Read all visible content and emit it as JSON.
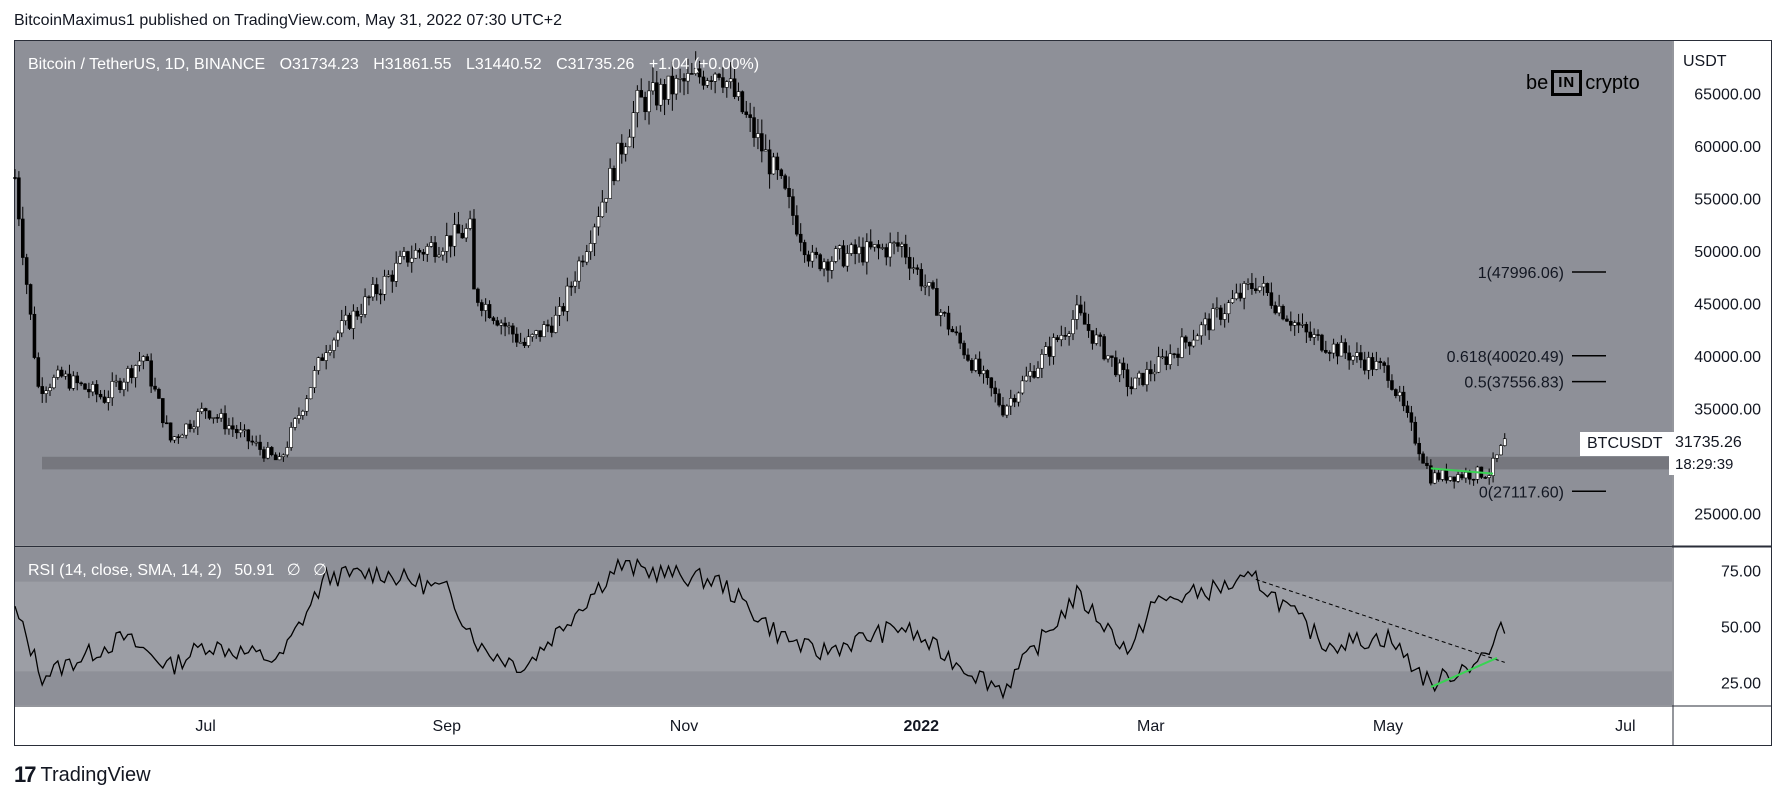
{
  "publish_line": "BitcoinMaximus1 published on TradingView.com, May 31, 2022 07:30 UTC+2",
  "symbol_title": "Bitcoin / TetherUS, 1D, BINANCE",
  "ohlc": {
    "o_label": "O",
    "o": "31734.23",
    "h_label": "H",
    "h": "31861.55",
    "l_label": "L",
    "l": "31440.52",
    "c_label": "C",
    "c": "31735.26",
    "change": "+1.04 (+0.00%)"
  },
  "brand": {
    "left": "be",
    "box": "IN",
    "right": "crypto"
  },
  "currency": "USDT",
  "last_price_tag": {
    "symbol": "BTCUSDT",
    "price": "31735.26",
    "countdown": "18:29:39"
  },
  "rsi_legend": {
    "label": "RSI (14, close, SMA, 14, 2)",
    "value": "50.91",
    "na1": "∅",
    "na2": "∅"
  },
  "footer": {
    "logo": "17",
    "text": "TradingView"
  },
  "colors": {
    "plot_bg": "#8e9098",
    "rsi_band": "#9c9ea5",
    "support_band": "#6d6f76",
    "green": "#39d353",
    "text_white": "#ffffff"
  },
  "chart_data": [
    {
      "type": "candlestick",
      "price_axis": {
        "ticks": [
          "65000.00",
          "60000.00",
          "55000.00",
          "50000.00",
          "45000.00",
          "40000.00",
          "35000.00",
          "25000.00"
        ],
        "range": [
          22000,
          70000
        ]
      },
      "time_axis": {
        "labels": [
          "Jul",
          "Sep",
          "Nov",
          "2022",
          "Mar",
          "May",
          "Jul"
        ],
        "dates": [
          "2021-07-01",
          "2021-09-01",
          "2021-11-01",
          "2022-01-01",
          "2022-03-01",
          "2022-05-01",
          "2022-07-01"
        ]
      },
      "range": [
        "2021-05-13",
        "2022-07-13"
      ],
      "close_path": [
        {
          "date": "2021-05-13",
          "price": 57000
        },
        {
          "date": "2021-05-19",
          "price": 37000
        },
        {
          "date": "2021-05-25",
          "price": 38000
        },
        {
          "date": "2021-06-05",
          "price": 36000
        },
        {
          "date": "2021-06-15",
          "price": 40000
        },
        {
          "date": "2021-06-22",
          "price": 32000
        },
        {
          "date": "2021-07-01",
          "price": 35000
        },
        {
          "date": "2021-07-20",
          "price": 29800
        },
        {
          "date": "2021-08-01",
          "price": 41000
        },
        {
          "date": "2021-08-22",
          "price": 49500
        },
        {
          "date": "2021-09-07",
          "price": 52000
        },
        {
          "date": "2021-09-08",
          "price": 46000
        },
        {
          "date": "2021-09-21",
          "price": 41000
        },
        {
          "date": "2021-09-30",
          "price": 43800
        },
        {
          "date": "2021-10-20",
          "price": 64000
        },
        {
          "date": "2021-11-10",
          "price": 67500
        },
        {
          "date": "2021-11-25",
          "price": 57000
        },
        {
          "date": "2021-12-04",
          "price": 49000
        },
        {
          "date": "2021-12-27",
          "price": 50500
        },
        {
          "date": "2022-01-10",
          "price": 41700
        },
        {
          "date": "2022-01-22",
          "price": 35000
        },
        {
          "date": "2022-02-10",
          "price": 44000
        },
        {
          "date": "2022-02-24",
          "price": 37000
        },
        {
          "date": "2022-03-28",
          "price": 47000
        },
        {
          "date": "2022-04-10",
          "price": 42000
        },
        {
          "date": "2022-05-01",
          "price": 38500
        },
        {
          "date": "2022-05-12",
          "price": 28500
        },
        {
          "date": "2022-05-27",
          "price": 28900
        },
        {
          "date": "2022-05-31",
          "price": 31735
        }
      ],
      "support_zone": [
        29200,
        30400
      ],
      "fibonacci": [
        {
          "label": "1(47996.06)",
          "price": 47996.06
        },
        {
          "label": "0.618(40020.49)",
          "price": 40020.49
        },
        {
          "label": "0.5(37556.83)",
          "price": 37556.83
        },
        {
          "label": "0(27117.60)",
          "price": 27117.6
        }
      ],
      "green_trendline": [
        {
          "date": "2022-05-12",
          "price": 29300
        },
        {
          "date": "2022-05-28",
          "price": 28800
        }
      ]
    },
    {
      "type": "line",
      "name": "RSI",
      "axis_ticks": [
        "75.00",
        "50.00",
        "25.00"
      ],
      "band": [
        30,
        70
      ],
      "range": [
        15,
        85
      ],
      "points": [
        {
          "date": "2021-05-13",
          "value": 57
        },
        {
          "date": "2021-05-20",
          "value": 28
        },
        {
          "date": "2021-06-10",
          "value": 45
        },
        {
          "date": "2021-06-22",
          "value": 32
        },
        {
          "date": "2021-07-01",
          "value": 42
        },
        {
          "date": "2021-07-20",
          "value": 35
        },
        {
          "date": "2021-08-01",
          "value": 72
        },
        {
          "date": "2021-08-15",
          "value": 74
        },
        {
          "date": "2021-09-01",
          "value": 66
        },
        {
          "date": "2021-09-10",
          "value": 40
        },
        {
          "date": "2021-09-21",
          "value": 32
        },
        {
          "date": "2021-10-15",
          "value": 77
        },
        {
          "date": "2021-11-10",
          "value": 70
        },
        {
          "date": "2021-11-25",
          "value": 47
        },
        {
          "date": "2021-12-05",
          "value": 38
        },
        {
          "date": "2021-12-27",
          "value": 50
        },
        {
          "date": "2022-01-10",
          "value": 34
        },
        {
          "date": "2022-01-22",
          "value": 22
        },
        {
          "date": "2022-02-10",
          "value": 64
        },
        {
          "date": "2022-02-24",
          "value": 38
        },
        {
          "date": "2022-03-01",
          "value": 60
        },
        {
          "date": "2022-03-28",
          "value": 71
        },
        {
          "date": "2022-04-15",
          "value": 42
        },
        {
          "date": "2022-05-01",
          "value": 45
        },
        {
          "date": "2022-05-12",
          "value": 24
        },
        {
          "date": "2022-05-27",
          "value": 38
        },
        {
          "date": "2022-05-31",
          "value": 51
        }
      ],
      "dashed_trendline": [
        {
          "date": "2022-03-28",
          "value": 71
        },
        {
          "date": "2022-05-31",
          "value": 34
        }
      ],
      "green_trendline": [
        {
          "date": "2022-05-12",
          "value": 23
        },
        {
          "date": "2022-05-29",
          "value": 36
        }
      ]
    }
  ]
}
